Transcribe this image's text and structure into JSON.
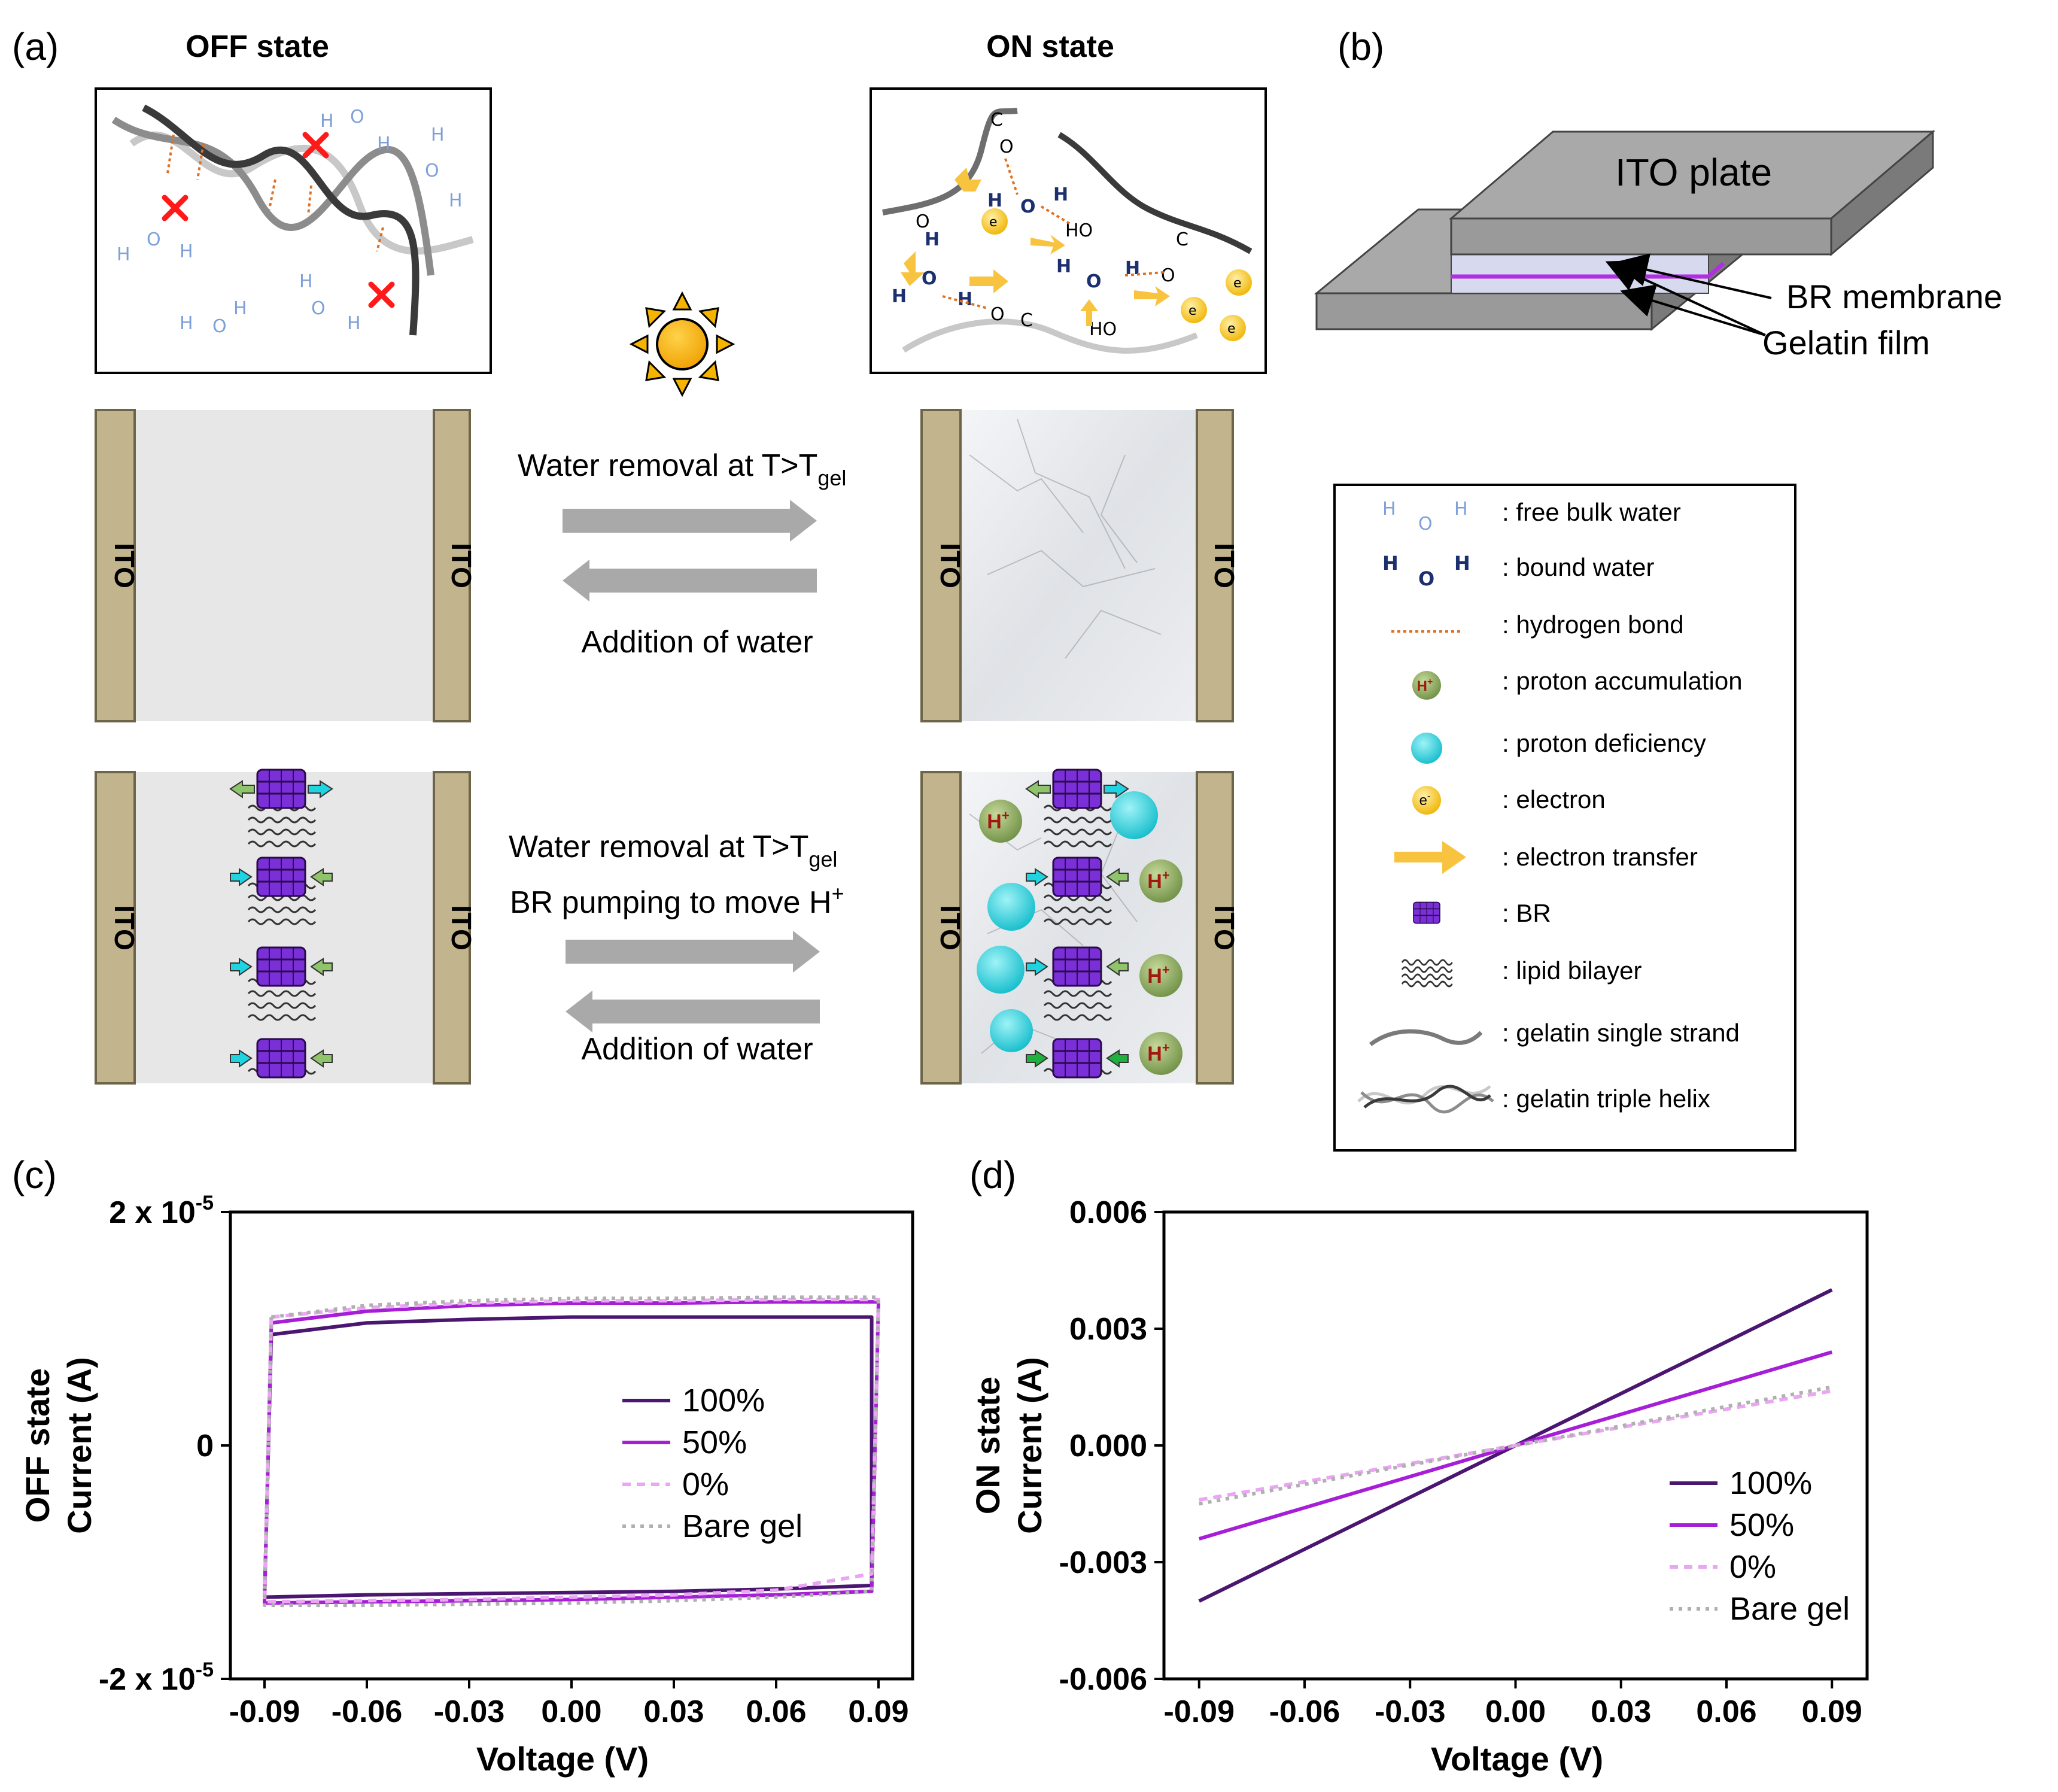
{
  "panels": {
    "a": "(a)",
    "b": "(b)",
    "c": "(c)",
    "d": "(d)"
  },
  "states": {
    "off": "OFF state",
    "on": "ON state"
  },
  "ito": "ITO",
  "arrows_plain": {
    "forward": "Water removal at T>T",
    "sub": "gel",
    "backward": "Addition of water"
  },
  "arrows_br": {
    "forward": "Water removal at T>T",
    "sub": "gel",
    "pump": "BR pumping to move H",
    "pump_sup": "+",
    "backward": "Addition of water"
  },
  "device": {
    "ito_plate": "ITO plate",
    "br_membrane": "BR membrane",
    "gelatin_film": "Gelatin film"
  },
  "molecules": {
    "h": "H",
    "o": "O",
    "c": "C",
    "ho": "HO",
    "e": "e",
    "e_sup": "-",
    "hplus": "H",
    "hplus_sup": "+"
  },
  "legend": {
    "items": [
      ": free bulk water",
      ": bound water",
      ": hydrogen bond",
      ": proton accumulation",
      ": proton deficiency",
      ": electron",
      ": electron transfer",
      ": BR",
      ": lipid bilayer",
      ": gelatin single strand",
      ": gelatin triple helix"
    ]
  },
  "colors": {
    "c100": "#4a1670",
    "c50": "#a61fd6",
    "c0": "#eaa6f2",
    "bare": "#b0b0b0",
    "ito": "#c2b48c",
    "proton_def": "#1fd3e0",
    "proton_acc": "#8aa860",
    "electron": "#f5c518",
    "br": "#7a2fd8"
  },
  "chart_data": [
    {
      "type": "line",
      "panel": "c",
      "xlabel": "Voltage (V)",
      "ylabel_1": "OFF state",
      "ylabel_2": "Current (A)",
      "xlim": [
        -0.1,
        0.1
      ],
      "ylim": [
        -2e-05,
        2e-05
      ],
      "xticks": [
        "-0.09",
        "-0.06",
        "-0.03",
        "0.00",
        "0.03",
        "0.06",
        "0.09"
      ],
      "xtick_values": [
        -0.09,
        -0.06,
        -0.03,
        0.0,
        0.03,
        0.06,
        0.09
      ],
      "yticks": [
        {
          "value": 2e-05,
          "label": "2 x 10",
          "exp": "-5"
        },
        {
          "value": 0,
          "label": "0",
          "exp": ""
        },
        {
          "value": -2e-05,
          "label": "-2 x 10",
          "exp": "-5"
        }
      ],
      "series": [
        {
          "name": "100%",
          "style": "solid",
          "color_key": "c100",
          "upper": [
            [
              -0.088,
              9.5e-06
            ],
            [
              -0.06,
              1.05e-05
            ],
            [
              -0.03,
              1.08e-05
            ],
            [
              0.0,
              1.1e-05
            ],
            [
              0.03,
              1.1e-05
            ],
            [
              0.06,
              1.1e-05
            ],
            [
              0.088,
              1.1e-05
            ]
          ],
          "lower": [
            [
              -0.09,
              -1.3e-05
            ],
            [
              -0.06,
              -1.28e-05
            ],
            [
              -0.03,
              -1.27e-05
            ],
            [
              0.0,
              -1.26e-05
            ],
            [
              0.03,
              -1.25e-05
            ],
            [
              0.06,
              -1.23e-05
            ],
            [
              0.088,
              -1.2e-05
            ]
          ]
        },
        {
          "name": "50%",
          "style": "solid",
          "color_key": "c50",
          "upper": [
            [
              -0.088,
              1.05e-05
            ],
            [
              -0.06,
              1.15e-05
            ],
            [
              -0.03,
              1.2e-05
            ],
            [
              0.0,
              1.22e-05
            ],
            [
              0.03,
              1.22e-05
            ],
            [
              0.06,
              1.23e-05
            ],
            [
              0.09,
              1.23e-05
            ]
          ],
          "lower": [
            [
              -0.09,
              -1.35e-05
            ],
            [
              -0.06,
              -1.34e-05
            ],
            [
              -0.03,
              -1.33e-05
            ],
            [
              0.0,
              -1.32e-05
            ],
            [
              0.03,
              -1.3e-05
            ],
            [
              0.06,
              -1.28e-05
            ],
            [
              0.088,
              -1.25e-05
            ]
          ]
        },
        {
          "name": "0%",
          "style": "dashed",
          "color_key": "c0",
          "upper": [
            [
              -0.088,
              1.1e-05
            ],
            [
              -0.06,
              1.18e-05
            ],
            [
              -0.03,
              1.22e-05
            ],
            [
              0.0,
              1.24e-05
            ],
            [
              0.03,
              1.24e-05
            ],
            [
              0.06,
              1.25e-05
            ],
            [
              0.09,
              1.25e-05
            ]
          ],
          "lower": [
            [
              -0.09,
              -1.34e-05
            ],
            [
              -0.06,
              -1.33e-05
            ],
            [
              -0.03,
              -1.32e-05
            ],
            [
              0.0,
              -1.3e-05
            ],
            [
              0.03,
              -1.28e-05
            ],
            [
              0.06,
              -1.24e-05
            ],
            [
              0.088,
              -1.1e-05
            ]
          ]
        },
        {
          "name": "Bare gel",
          "style": "dotted",
          "color_key": "bare",
          "upper": [
            [
              -0.088,
              1.1e-05
            ],
            [
              -0.06,
              1.2e-05
            ],
            [
              -0.03,
              1.24e-05
            ],
            [
              0.0,
              1.26e-05
            ],
            [
              0.03,
              1.26e-05
            ],
            [
              0.06,
              1.27e-05
            ],
            [
              0.09,
              1.27e-05
            ]
          ],
          "lower": [
            [
              -0.09,
              -1.37e-05
            ],
            [
              -0.06,
              -1.37e-05
            ],
            [
              -0.03,
              -1.36e-05
            ],
            [
              0.0,
              -1.35e-05
            ],
            [
              0.03,
              -1.33e-05
            ],
            [
              0.06,
              -1.3e-05
            ],
            [
              0.088,
              -1.25e-05
            ]
          ]
        }
      ]
    },
    {
      "type": "line",
      "panel": "d",
      "xlabel": "Voltage (V)",
      "ylabel_1": "ON state",
      "ylabel_2": "Current (A)",
      "xlim": [
        -0.1,
        0.1
      ],
      "ylim": [
        -0.006,
        0.006
      ],
      "xticks": [
        "-0.09",
        "-0.06",
        "-0.03",
        "0.00",
        "0.03",
        "0.06",
        "0.09"
      ],
      "xtick_values": [
        -0.09,
        -0.06,
        -0.03,
        0.0,
        0.03,
        0.06,
        0.09
      ],
      "yticks": [
        {
          "value": 0.006,
          "label": "0.006"
        },
        {
          "value": 0.003,
          "label": "0.003"
        },
        {
          "value": 0.0,
          "label": "0.000"
        },
        {
          "value": -0.003,
          "label": "-0.003"
        },
        {
          "value": -0.006,
          "label": "-0.006"
        }
      ],
      "series": [
        {
          "name": "100%",
          "style": "solid",
          "color_key": "c100",
          "points": [
            [
              -0.09,
              -0.004
            ],
            [
              0.09,
              0.004
            ]
          ]
        },
        {
          "name": "50%",
          "style": "solid",
          "color_key": "c50",
          "points": [
            [
              -0.09,
              -0.0024
            ],
            [
              0.09,
              0.0024
            ]
          ]
        },
        {
          "name": "0%",
          "style": "dashed",
          "color_key": "c0",
          "points": [
            [
              -0.09,
              -0.0014
            ],
            [
              0.09,
              0.0014
            ]
          ]
        },
        {
          "name": "Bare gel",
          "style": "dotted",
          "color_key": "bare",
          "points": [
            [
              -0.09,
              -0.0015
            ],
            [
              0.09,
              0.0015
            ]
          ]
        }
      ]
    }
  ]
}
